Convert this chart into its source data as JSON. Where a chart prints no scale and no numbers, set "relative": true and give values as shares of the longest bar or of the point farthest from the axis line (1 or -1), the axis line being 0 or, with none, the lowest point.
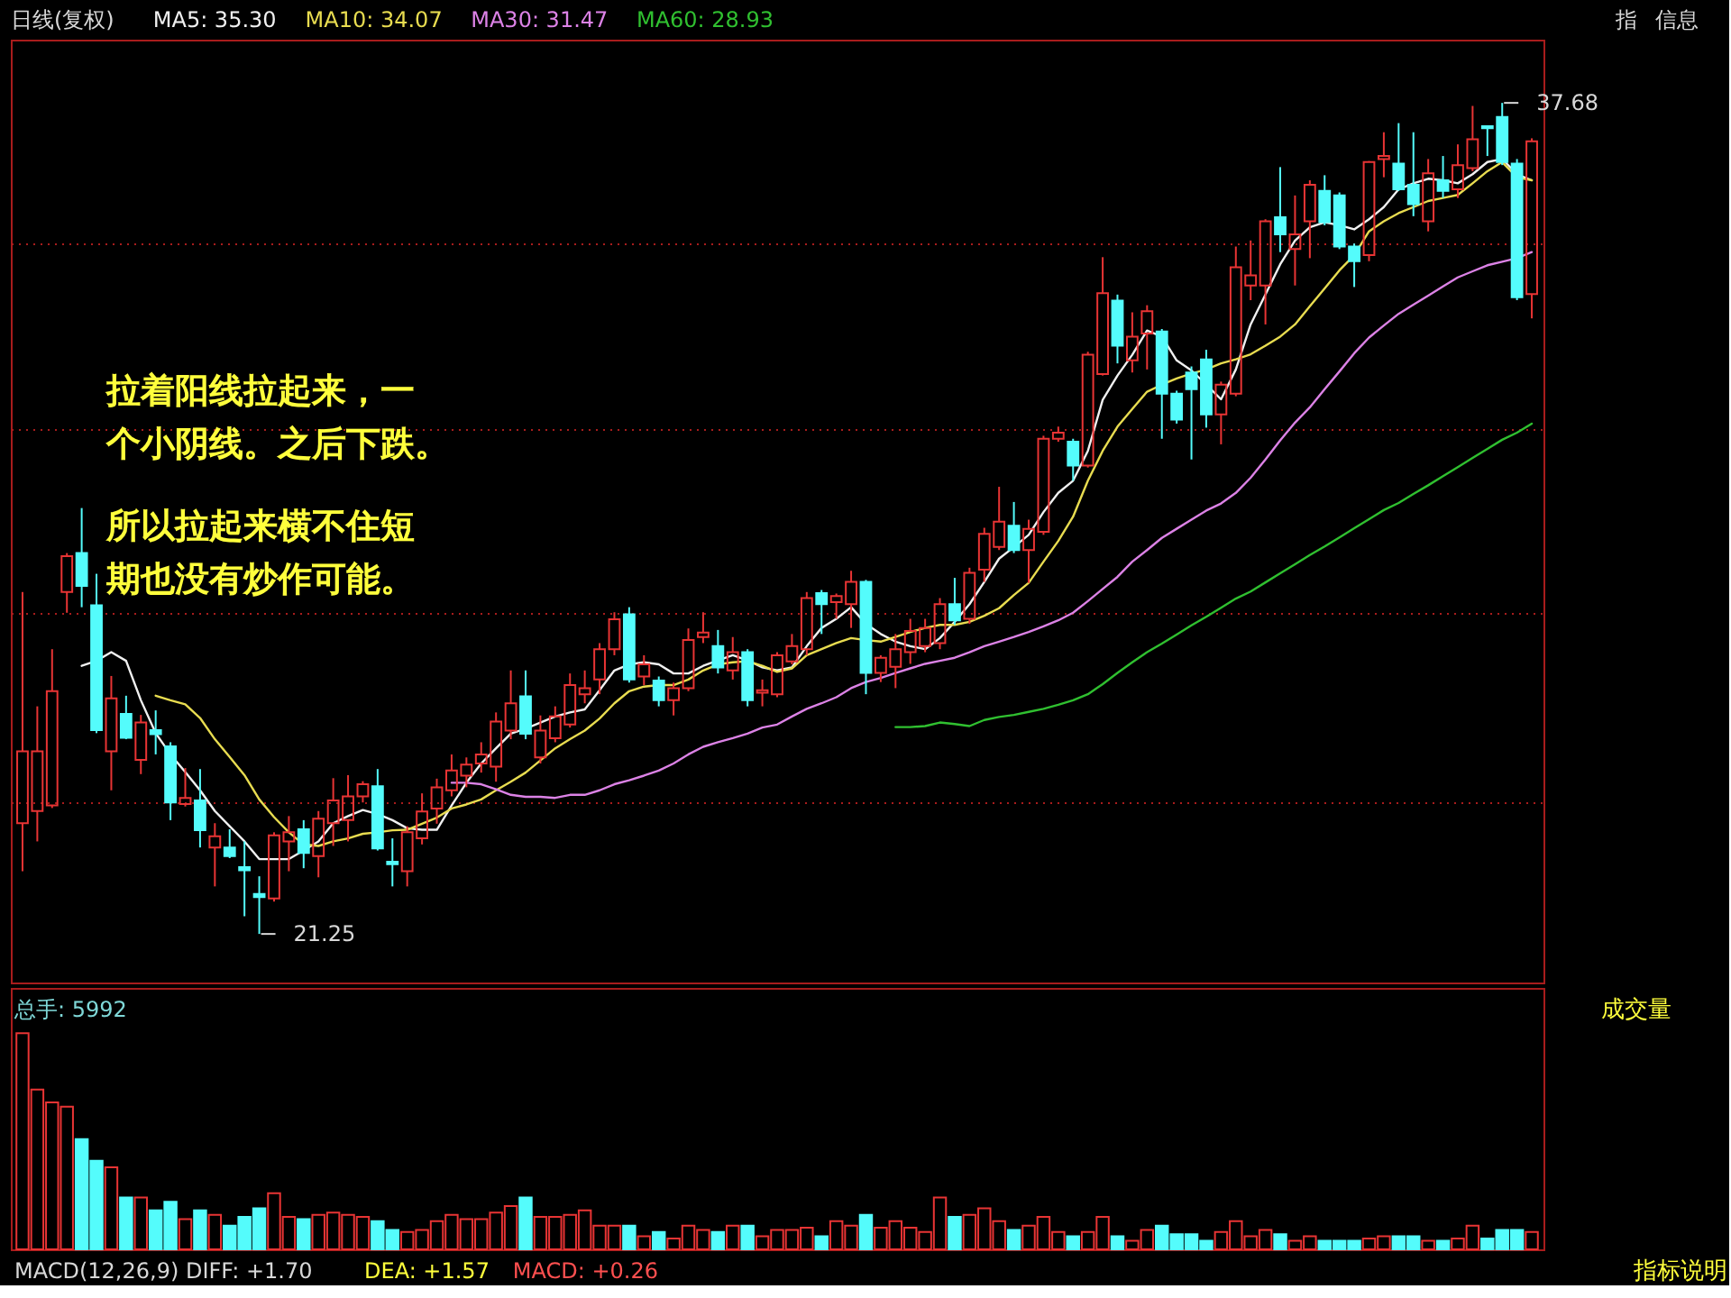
{
  "chart_data": [
    {
      "type": "candlestick",
      "title": "日线(复权)",
      "legend": "top left",
      "grid": "y",
      "tick_labels": false,
      "categories": [
        null,
        null,
        null,
        null,
        null,
        null,
        null,
        null,
        null,
        null,
        null,
        null,
        null,
        null,
        null,
        null,
        null,
        null,
        null,
        null,
        null,
        null,
        null,
        null,
        null,
        null,
        null,
        null,
        null,
        null,
        null,
        null,
        null,
        null,
        null,
        null,
        null,
        null,
        null,
        null,
        null,
        null,
        null,
        null,
        null,
        null,
        null,
        null,
        null,
        null,
        null,
        null,
        null,
        null,
        null,
        null,
        null,
        null,
        null,
        null,
        null,
        null,
        null,
        null,
        null,
        null,
        null,
        null,
        null,
        null,
        null,
        null,
        null,
        null,
        null,
        null,
        null,
        null,
        null,
        null,
        null,
        null,
        null,
        null,
        null,
        null,
        null,
        null,
        null,
        null,
        null,
        null,
        null,
        null,
        null,
        null,
        null,
        null,
        null,
        null,
        null,
        null,
        null
      ],
      "ylim": [
        20.29,
        38.93
      ],
      "yticks": [
        {
          "value": 34.92,
          "label": null
        },
        {
          "value": 31.24,
          "label": null
        },
        {
          "value": 27.58,
          "label": null
        },
        {
          "value": 23.87,
          "label": null
        }
      ],
      "ohlc": [
        [
          23.44,
          28.01,
          22.49,
          24.86
        ],
        [
          23.68,
          25.75,
          23.08,
          24.86
        ],
        [
          23.79,
          26.88,
          23.74,
          26.05
        ],
        [
          28.01,
          28.78,
          27.6,
          28.72
        ],
        [
          28.78,
          29.67,
          27.71,
          28.13
        ],
        [
          27.75,
          28.37,
          25.22,
          25.28
        ],
        [
          24.86,
          26.35,
          24.09,
          25.91
        ],
        [
          25.6,
          25.96,
          25.1,
          25.13
        ],
        [
          24.69,
          25.58,
          24.41,
          25.43
        ],
        [
          25.28,
          25.67,
          24.8,
          25.2
        ],
        [
          24.96,
          25.04,
          23.5,
          23.85
        ],
        [
          23.82,
          24.53,
          23.77,
          23.94
        ],
        [
          23.89,
          24.51,
          22.96,
          23.3
        ],
        [
          22.96,
          23.44,
          22.19,
          23.18
        ],
        [
          22.96,
          23.32,
          22.75,
          22.79
        ],
        [
          22.57,
          23.08,
          21.6,
          22.51
        ],
        [
          22.04,
          22.39,
          21.25,
          21.98
        ],
        [
          21.95,
          23.26,
          21.89,
          23.2
        ],
        [
          23.08,
          23.58,
          22.49,
          23.26
        ],
        [
          23.32,
          23.5,
          22.55,
          22.85
        ],
        [
          22.79,
          23.68,
          22.37,
          23.53
        ],
        [
          23.44,
          24.33,
          22.99,
          23.89
        ],
        [
          23.5,
          24.39,
          23.08,
          23.97
        ],
        [
          23.97,
          24.27,
          23.85,
          24.21
        ],
        [
          24.17,
          24.51,
          22.9,
          22.94
        ],
        [
          22.68,
          23.14,
          22.19,
          22.63
        ],
        [
          22.49,
          23.38,
          22.19,
          23.26
        ],
        [
          23.14,
          24.03,
          23.02,
          23.67
        ],
        [
          23.73,
          24.32,
          23.43,
          24.15
        ],
        [
          24.09,
          24.8,
          23.97,
          24.48
        ],
        [
          24.38,
          24.74,
          24.15,
          24.6
        ],
        [
          24.62,
          25.04,
          24.44,
          24.8
        ],
        [
          24.56,
          25.63,
          24.26,
          25.45
        ],
        [
          25.27,
          26.46,
          25.1,
          25.81
        ],
        [
          25.95,
          26.46,
          25.1,
          25.21
        ],
        [
          24.74,
          25.57,
          24.62,
          25.27
        ],
        [
          25.12,
          25.75,
          25.04,
          25.55
        ],
        [
          25.39,
          26.4,
          25.33,
          26.17
        ],
        [
          25.99,
          26.46,
          25.81,
          26.11
        ],
        [
          26.28,
          27.0,
          25.99,
          26.88
        ],
        [
          26.88,
          27.61,
          26.76,
          27.47
        ],
        [
          27.57,
          27.71,
          26.22,
          26.28
        ],
        [
          26.34,
          26.76,
          26.17,
          26.58
        ],
        [
          26.26,
          26.34,
          25.75,
          25.87
        ],
        [
          25.87,
          26.22,
          25.57,
          26.11
        ],
        [
          26.11,
          27.29,
          26.05,
          27.06
        ],
        [
          27.12,
          27.61,
          27.0,
          27.21
        ],
        [
          26.94,
          27.26,
          26.4,
          26.52
        ],
        [
          26.46,
          27.12,
          26.28,
          26.82
        ],
        [
          26.82,
          26.88,
          25.75,
          25.87
        ],
        [
          26.02,
          26.28,
          25.75,
          26.07
        ],
        [
          25.99,
          26.82,
          25.93,
          26.76
        ],
        [
          26.64,
          27.18,
          26.58,
          26.94
        ],
        [
          26.88,
          28.01,
          26.76,
          27.89
        ],
        [
          27.99,
          28.05,
          27.18,
          27.77
        ],
        [
          27.81,
          27.98,
          27.48,
          27.93
        ],
        [
          27.77,
          28.43,
          27.3,
          28.21
        ],
        [
          28.21,
          28.25,
          25.99,
          26.41
        ],
        [
          26.41,
          26.76,
          26.23,
          26.71
        ],
        [
          26.53,
          27.18,
          26.11,
          26.88
        ],
        [
          26.82,
          27.48,
          26.59,
          27.24
        ],
        [
          26.94,
          27.48,
          26.82,
          27.3
        ],
        [
          27.0,
          27.89,
          26.88,
          27.77
        ],
        [
          27.77,
          28.29,
          27.36,
          27.45
        ],
        [
          27.48,
          28.49,
          27.38,
          28.39
        ],
        [
          28.45,
          29.28,
          28.21,
          29.16
        ],
        [
          28.9,
          30.09,
          28.84,
          29.4
        ],
        [
          29.32,
          29.79,
          28.78,
          28.84
        ],
        [
          28.84,
          29.44,
          28.19,
          29.26
        ],
        [
          29.2,
          31.1,
          29.14,
          31.04
        ],
        [
          31.04,
          31.28,
          30.98,
          31.16
        ],
        [
          30.98,
          31.04,
          30.21,
          30.51
        ],
        [
          30.51,
          32.76,
          30.47,
          32.7
        ],
        [
          32.32,
          34.63,
          32.29,
          33.92
        ],
        [
          33.77,
          33.89,
          32.53,
          32.88
        ],
        [
          32.59,
          33.54,
          32.35,
          33.06
        ],
        [
          33.12,
          33.68,
          32.41,
          33.56
        ],
        [
          33.16,
          33.21,
          31.04,
          31.93
        ],
        [
          31.93,
          31.99,
          31.34,
          31.42
        ],
        [
          32.35,
          32.47,
          30.63,
          32.02
        ],
        [
          32.61,
          32.8,
          31.26,
          31.52
        ],
        [
          31.52,
          32.17,
          30.93,
          32.11
        ],
        [
          31.93,
          34.84,
          31.88,
          34.43
        ],
        [
          34.07,
          34.96,
          33.78,
          34.27
        ],
        [
          34.07,
          35.38,
          33.3,
          35.34
        ],
        [
          35.42,
          36.41,
          34.73,
          35.08
        ],
        [
          34.79,
          35.85,
          34.07,
          35.08
        ],
        [
          35.34,
          36.15,
          34.61,
          36.06
        ],
        [
          35.94,
          36.25,
          35.26,
          35.32
        ],
        [
          35.85,
          35.91,
          34.79,
          34.84
        ],
        [
          34.84,
          34.9,
          34.04,
          34.55
        ],
        [
          34.67,
          36.53,
          34.55,
          36.51
        ],
        [
          36.57,
          37.1,
          36.21,
          36.63
        ],
        [
          36.48,
          37.28,
          35.94,
          35.97
        ],
        [
          36.06,
          37.1,
          35.44,
          35.68
        ],
        [
          35.34,
          36.57,
          35.14,
          36.29
        ],
        [
          36.15,
          36.63,
          35.8,
          35.94
        ],
        [
          35.97,
          36.86,
          35.8,
          36.45
        ],
        [
          36.39,
          37.62,
          36.33,
          36.96
        ],
        [
          37.22,
          37.22,
          36.63,
          37.18
        ],
        [
          37.4,
          37.68,
          36.45,
          36.51
        ],
        [
          36.48,
          36.57,
          33.78,
          33.84
        ],
        [
          33.9,
          36.98,
          33.42,
          36.92
        ]
      ],
      "colors": [
        "#e83434",
        "#e83434",
        "#e83434",
        "#e83434",
        "#54fcfc",
        "#54fcfc",
        "#e83434",
        "#54fcfc",
        "#e83434",
        "#54fcfc",
        "#54fcfc",
        "#e83434",
        "#54fcfc",
        "#e83434",
        "#54fcfc",
        "#54fcfc",
        "#54fcfc",
        "#e83434",
        "#e83434",
        "#54fcfc",
        "#e83434",
        "#e83434",
        "#e83434",
        "#e83434",
        "#54fcfc",
        "#54fcfc",
        "#e83434",
        "#e83434",
        "#e83434",
        "#e83434",
        "#e83434",
        "#e83434",
        "#e83434",
        "#e83434",
        "#54fcfc",
        "#e83434",
        "#e83434",
        "#e83434",
        "#e83434",
        "#e83434",
        "#e83434",
        "#54fcfc",
        "#e83434",
        "#54fcfc",
        "#e83434",
        "#e83434",
        "#e83434",
        "#54fcfc",
        "#e83434",
        "#54fcfc",
        "#e83434",
        "#e83434",
        "#e83434",
        "#e83434",
        "#54fcfc",
        "#e83434",
        "#e83434",
        "#54fcfc",
        "#e83434",
        "#e83434",
        "#e83434",
        "#e83434",
        "#e83434",
        "#54fcfc",
        "#e83434",
        "#e83434",
        "#e83434",
        "#54fcfc",
        "#e83434",
        "#e83434",
        "#e83434",
        "#54fcfc",
        "#e83434",
        "#e83434",
        "#54fcfc",
        "#e83434",
        "#e83434",
        "#54fcfc",
        "#54fcfc",
        "#54fcfc",
        "#54fcfc",
        "#e83434",
        "#e83434",
        "#e83434",
        "#e83434",
        "#54fcfc",
        "#e83434",
        "#e83434",
        "#54fcfc",
        "#54fcfc",
        "#54fcfc",
        "#e83434",
        "#e83434",
        "#54fcfc",
        "#54fcfc",
        "#e83434",
        "#54fcfc",
        "#e83434",
        "#e83434",
        "#54fcfc",
        "#54fcfc",
        "#54fcfc",
        "#e83434"
      ],
      "series": [
        {
          "name": "MA5: 35.30",
          "type": "line",
          "color": "#f0f0f0",
          "values": [
            null,
            null,
            null,
            null,
            26.55,
            26.65,
            26.82,
            26.65,
            25.87,
            25.22,
            24.8,
            24.45,
            24.09,
            23.68,
            23.38,
            23.08,
            22.73,
            22.73,
            22.73,
            22.9,
            23.08,
            23.44,
            23.58,
            23.7,
            23.62,
            23.5,
            23.34,
            23.31,
            23.31,
            23.79,
            24.24,
            24.62,
            24.92,
            25.21,
            25.31,
            25.43,
            25.55,
            25.63,
            25.69,
            26.07,
            26.46,
            26.58,
            26.62,
            26.58,
            26.4,
            26.4,
            26.55,
            26.66,
            26.76,
            26.66,
            26.52,
            26.46,
            26.52,
            26.94,
            27.3,
            27.48,
            27.71,
            27.38,
            27.18,
            27.03,
            26.94,
            26.88,
            27.1,
            27.42,
            27.77,
            28.21,
            28.67,
            28.9,
            29.14,
            29.59,
            29.97,
            30.21,
            30.8,
            31.81,
            32.29,
            32.7,
            33.18,
            33.06,
            32.59,
            32.39,
            32.11,
            31.82,
            32.41,
            33.3,
            33.89,
            34.49,
            34.96,
            35.22,
            35.32,
            35.26,
            35.18,
            35.38,
            35.62,
            35.97,
            36.09,
            36.18,
            36.15,
            36.09,
            36.27,
            36.51,
            36.57,
            36.27,
            36.15
          ]
        },
        {
          "name": "MA10: 34.07",
          "type": "line",
          "color": "#e8dc50",
          "values": [
            null,
            null,
            null,
            null,
            null,
            null,
            null,
            null,
            null,
            25.96,
            25.87,
            25.79,
            25.52,
            25.1,
            24.75,
            24.39,
            23.91,
            23.56,
            23.26,
            23.02,
            22.99,
            23.08,
            23.14,
            23.23,
            23.26,
            23.3,
            23.31,
            23.43,
            23.55,
            23.73,
            23.81,
            23.91,
            24.09,
            24.26,
            24.44,
            24.68,
            24.92,
            25.1,
            25.27,
            25.51,
            25.81,
            26.05,
            26.14,
            26.17,
            26.17,
            26.28,
            26.46,
            26.58,
            26.62,
            26.64,
            26.55,
            26.43,
            26.5,
            26.76,
            26.88,
            27.0,
            27.1,
            27.06,
            27.03,
            27.12,
            27.22,
            27.3,
            27.36,
            27.36,
            27.42,
            27.54,
            27.69,
            27.95,
            28.19,
            28.61,
            29.02,
            29.5,
            30.21,
            30.8,
            31.28,
            31.63,
            31.97,
            32.11,
            32.23,
            32.33,
            32.41,
            32.53,
            32.61,
            32.71,
            32.88,
            33.06,
            33.3,
            33.66,
            34.01,
            34.37,
            34.67,
            35.14,
            35.34,
            35.5,
            35.62,
            35.74,
            35.8,
            35.86,
            36.09,
            36.33,
            36.51,
            36.21,
            36.15
          ]
        },
        {
          "name": "MA30: 31.47",
          "type": "line",
          "color": "#dc82e6",
          "values": [
            null,
            null,
            null,
            null,
            null,
            null,
            null,
            null,
            null,
            null,
            null,
            null,
            null,
            null,
            null,
            null,
            null,
            null,
            null,
            null,
            null,
            null,
            null,
            null,
            null,
            null,
            null,
            null,
            null,
            24.24,
            24.24,
            24.21,
            24.11,
            24.0,
            23.96,
            23.96,
            23.94,
            24.0,
            24.0,
            24.09,
            24.21,
            24.29,
            24.38,
            24.48,
            24.62,
            24.8,
            24.95,
            25.04,
            25.12,
            25.21,
            25.33,
            25.39,
            25.55,
            25.7,
            25.81,
            25.93,
            26.11,
            26.23,
            26.31,
            26.41,
            26.5,
            26.59,
            26.65,
            26.71,
            26.82,
            26.94,
            27.03,
            27.12,
            27.22,
            27.33,
            27.45,
            27.6,
            27.83,
            28.07,
            28.31,
            28.61,
            28.84,
            29.08,
            29.26,
            29.44,
            29.62,
            29.76,
            29.97,
            30.27,
            30.63,
            31.01,
            31.36,
            31.66,
            32.02,
            32.37,
            32.73,
            33.04,
            33.28,
            33.51,
            33.69,
            33.87,
            34.05,
            34.23,
            34.35,
            34.47,
            34.54,
            34.61,
            34.73
          ]
        },
        {
          "name": "MA60: 28.93",
          "type": "line",
          "color": "#30c030",
          "values": [
            null,
            null,
            null,
            null,
            null,
            null,
            null,
            null,
            null,
            null,
            null,
            null,
            null,
            null,
            null,
            null,
            null,
            null,
            null,
            null,
            null,
            null,
            null,
            null,
            null,
            null,
            null,
            null,
            null,
            null,
            null,
            null,
            null,
            null,
            null,
            null,
            null,
            null,
            null,
            null,
            null,
            null,
            null,
            null,
            null,
            null,
            null,
            null,
            null,
            null,
            null,
            null,
            null,
            null,
            null,
            null,
            null,
            null,
            null,
            25.34,
            25.34,
            25.36,
            25.43,
            25.4,
            25.36,
            25.48,
            25.54,
            25.58,
            25.64,
            25.7,
            25.78,
            25.87,
            25.99,
            26.19,
            26.41,
            26.62,
            26.82,
            26.99,
            27.17,
            27.35,
            27.52,
            27.7,
            27.88,
            28.02,
            28.2,
            28.38,
            28.56,
            28.74,
            28.91,
            29.09,
            29.27,
            29.45,
            29.63,
            29.77,
            29.95,
            30.12,
            30.3,
            30.48,
            30.66,
            30.84,
            31.02,
            31.16,
            31.34
          ]
        }
      ],
      "annotations": [
        "拉着阳线拉起来，一个小阴线。之后下跌。",
        "所以拉起来横不住短期也没有炒作可能。",
        "37.68",
        "21.25",
        "指",
        "信息"
      ]
    },
    {
      "type": "bar",
      "title": "总手: 5992",
      "relative": true,
      "tick_labels": false,
      "categories": [
        null,
        null,
        null,
        null,
        null,
        null,
        null,
        null,
        null,
        null,
        null,
        null,
        null,
        null,
        null,
        null,
        null,
        null,
        null,
        null,
        null,
        null,
        null,
        null,
        null,
        null,
        null,
        null,
        null,
        null,
        null,
        null,
        null,
        null,
        null,
        null,
        null,
        null,
        null,
        null,
        null,
        null,
        null,
        null,
        null,
        null,
        null,
        null,
        null,
        null,
        null,
        null,
        null,
        null,
        null,
        null,
        null,
        null,
        null,
        null,
        null,
        null,
        null,
        null,
        null,
        null,
        null,
        null,
        null,
        null,
        null,
        null,
        null,
        null,
        null,
        null,
        null,
        null,
        null,
        null,
        null,
        null,
        null,
        null,
        null,
        null,
        null,
        null,
        null,
        null,
        null,
        null,
        null,
        null,
        null,
        null,
        null,
        null,
        null,
        null,
        null,
        null,
        null
      ],
      "values": [
        1.0,
        0.74,
        0.68,
        0.66,
        0.51,
        0.41,
        0.38,
        0.24,
        0.24,
        0.18,
        0.22,
        0.14,
        0.18,
        0.16,
        0.11,
        0.15,
        0.19,
        0.26,
        0.15,
        0.14,
        0.16,
        0.17,
        0.16,
        0.15,
        0.13,
        0.09,
        0.08,
        0.09,
        0.13,
        0.16,
        0.14,
        0.14,
        0.17,
        0.2,
        0.24,
        0.15,
        0.15,
        0.16,
        0.18,
        0.11,
        0.11,
        0.11,
        0.06,
        0.08,
        0.05,
        0.11,
        0.09,
        0.08,
        0.11,
        0.11,
        0.06,
        0.09,
        0.09,
        0.1,
        0.06,
        0.13,
        0.11,
        0.16,
        0.1,
        0.13,
        0.1,
        0.08,
        0.24,
        0.15,
        0.16,
        0.19,
        0.13,
        0.09,
        0.11,
        0.15,
        0.08,
        0.06,
        0.08,
        0.15,
        0.06,
        0.04,
        0.09,
        0.11,
        0.07,
        0.07,
        0.04,
        0.08,
        0.13,
        0.06,
        0.09,
        0.07,
        0.04,
        0.06,
        0.04,
        0.04,
        0.04,
        0.05,
        0.06,
        0.06,
        0.06,
        0.04,
        0.04,
        0.05,
        0.11,
        0.05,
        0.09,
        0.09,
        0.08
      ],
      "colors": [
        "#e83434",
        "#e83434",
        "#e83434",
        "#e83434",
        "#54fcfc",
        "#54fcfc",
        "#e83434",
        "#54fcfc",
        "#e83434",
        "#54fcfc",
        "#54fcfc",
        "#e83434",
        "#54fcfc",
        "#e83434",
        "#54fcfc",
        "#54fcfc",
        "#54fcfc",
        "#e83434",
        "#e83434",
        "#54fcfc",
        "#e83434",
        "#e83434",
        "#e83434",
        "#e83434",
        "#54fcfc",
        "#54fcfc",
        "#e83434",
        "#e83434",
        "#e83434",
        "#e83434",
        "#e83434",
        "#e83434",
        "#e83434",
        "#e83434",
        "#54fcfc",
        "#e83434",
        "#e83434",
        "#e83434",
        "#e83434",
        "#e83434",
        "#e83434",
        "#54fcfc",
        "#e83434",
        "#54fcfc",
        "#e83434",
        "#e83434",
        "#e83434",
        "#54fcfc",
        "#e83434",
        "#54fcfc",
        "#e83434",
        "#e83434",
        "#e83434",
        "#e83434",
        "#54fcfc",
        "#e83434",
        "#e83434",
        "#54fcfc",
        "#e83434",
        "#e83434",
        "#e83434",
        "#e83434",
        "#e83434",
        "#54fcfc",
        "#e83434",
        "#e83434",
        "#e83434",
        "#54fcfc",
        "#e83434",
        "#e83434",
        "#e83434",
        "#54fcfc",
        "#e83434",
        "#e83434",
        "#54fcfc",
        "#e83434",
        "#e83434",
        "#54fcfc",
        "#54fcfc",
        "#54fcfc",
        "#54fcfc",
        "#e83434",
        "#e83434",
        "#e83434",
        "#e83434",
        "#54fcfc",
        "#e83434",
        "#e83434",
        "#54fcfc",
        "#54fcfc",
        "#54fcfc",
        "#e83434",
        "#e83434",
        "#54fcfc",
        "#54fcfc",
        "#e83434",
        "#54fcfc",
        "#e83434",
        "#e83434",
        "#54fcfc",
        "#54fcfc",
        "#54fcfc",
        "#e83434"
      ],
      "annotations": [
        "成交量",
        "指标说明",
        "MACD(12,26,9) DIFF: +1.70",
        "DEA: +1.57",
        "MACD: +0.26"
      ]
    }
  ]
}
